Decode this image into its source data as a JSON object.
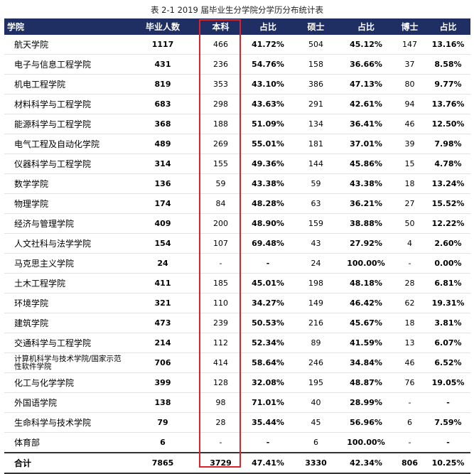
{
  "title": "表 2-1    2019 届毕业生分学院分学历分布统计表",
  "headers": [
    "学院",
    "毕业人数",
    "本科",
    "占比",
    "硕士",
    "占比",
    "博士",
    "占比"
  ],
  "rows": [
    [
      "航天学院",
      "1117",
      "466",
      "41.72%",
      "504",
      "45.12%",
      "147",
      "13.16%"
    ],
    [
      "电子与信息工程学院",
      "431",
      "236",
      "54.76%",
      "158",
      "36.66%",
      "37",
      "8.58%"
    ],
    [
      "机电工程学院",
      "819",
      "353",
      "43.10%",
      "386",
      "47.13%",
      "80",
      "9.77%"
    ],
    [
      "材料科学与工程学院",
      "683",
      "298",
      "43.63%",
      "291",
      "42.61%",
      "94",
      "13.76%"
    ],
    [
      "能源科学与工程学院",
      "368",
      "188",
      "51.09%",
      "134",
      "36.41%",
      "46",
      "12.50%"
    ],
    [
      "电气工程及自动化学院",
      "489",
      "269",
      "55.01%",
      "181",
      "37.01%",
      "39",
      "7.98%"
    ],
    [
      "仪器科学与工程学院",
      "314",
      "155",
      "49.36%",
      "144",
      "45.86%",
      "15",
      "4.78%"
    ],
    [
      "数学学院",
      "136",
      "59",
      "43.38%",
      "59",
      "43.38%",
      "18",
      "13.24%"
    ],
    [
      "物理学院",
      "174",
      "84",
      "48.28%",
      "63",
      "36.21%",
      "27",
      "15.52%"
    ],
    [
      "经济与管理学院",
      "409",
      "200",
      "48.90%",
      "159",
      "38.88%",
      "50",
      "12.22%"
    ],
    [
      "人文社科与法学学院",
      "154",
      "107",
      "69.48%",
      "43",
      "27.92%",
      "4",
      "2.60%"
    ],
    [
      "马克思主义学院",
      "24",
      "-",
      "-",
      "24",
      "100.00%",
      "-",
      "0.00%"
    ],
    [
      "土木工程学院",
      "411",
      "185",
      "45.01%",
      "198",
      "48.18%",
      "28",
      "6.81%"
    ],
    [
      "环境学院",
      "321",
      "110",
      "34.27%",
      "149",
      "46.42%",
      "62",
      "19.31%"
    ],
    [
      "建筑学院",
      "473",
      "239",
      "50.53%",
      "216",
      "45.67%",
      "18",
      "3.81%"
    ],
    [
      "交通科学与工程学院",
      "214",
      "112",
      "52.34%",
      "89",
      "41.59%",
      "13",
      "6.07%"
    ],
    [
      "计算机科学与技术学院/国家示范性软件学院",
      "706",
      "414",
      "58.64%",
      "246",
      "34.84%",
      "46",
      "6.52%"
    ],
    [
      "化工与化学学院",
      "399",
      "128",
      "32.08%",
      "195",
      "48.87%",
      "76",
      "19.05%"
    ],
    [
      "外国语学院",
      "138",
      "98",
      "71.01%",
      "40",
      "28.99%",
      "-",
      "-"
    ],
    [
      "生命科学与技术学院",
      "79",
      "28",
      "35.44%",
      "45",
      "56.96%",
      "6",
      "7.59%"
    ],
    [
      "体育部",
      "6",
      "-",
      "-",
      "6",
      "100.00%",
      "-",
      "-"
    ]
  ],
  "total": [
    "合计",
    "7865",
    "3729",
    "47.41%",
    "3330",
    "42.34%",
    "806",
    "10.25%"
  ],
  "highlight_color": "#d9232d",
  "header_bg": "#1f2f63"
}
